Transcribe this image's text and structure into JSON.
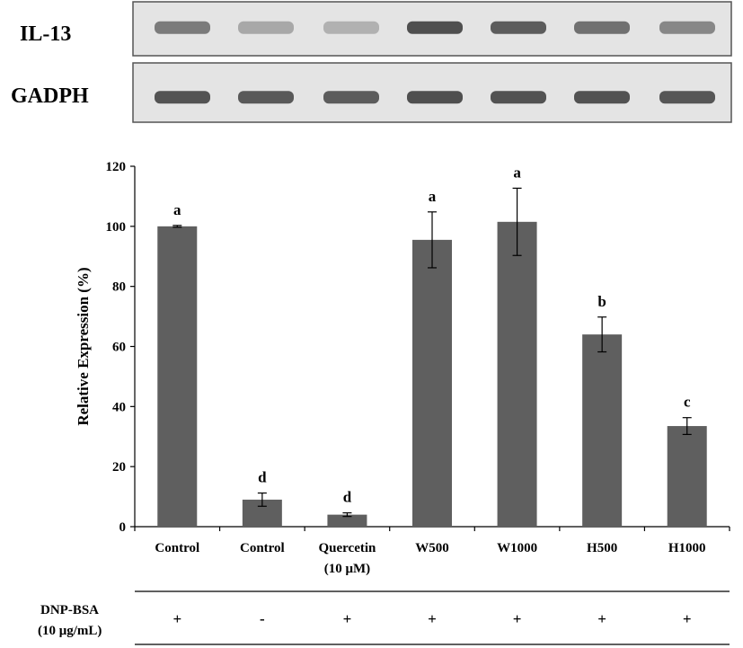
{
  "blot": {
    "rows": [
      {
        "label": "IL-13",
        "band_intensity": [
          0.62,
          0.35,
          0.3,
          0.88,
          0.8,
          0.68,
          0.55
        ]
      },
      {
        "label": "GADPH",
        "band_intensity": [
          0.85,
          0.82,
          0.8,
          0.88,
          0.86,
          0.86,
          0.84
        ]
      }
    ],
    "colors": {
      "membrane": "#e4e4e4",
      "band": "#3a3a3a",
      "border": "#555555"
    }
  },
  "chart_data": {
    "type": "bar",
    "ylabel": "Relative Expression (%)",
    "ylim": [
      0,
      120
    ],
    "yticks": [
      0,
      20,
      40,
      60,
      80,
      100,
      120
    ],
    "categories": [
      {
        "line1": "Control",
        "line2": ""
      },
      {
        "line1": "Control",
        "line2": ""
      },
      {
        "line1": "Quercetin",
        "line2": "(10 μM)"
      },
      {
        "line1": "W500",
        "line2": ""
      },
      {
        "line1": "W1000",
        "line2": ""
      },
      {
        "line1": "H500",
        "line2": ""
      },
      {
        "line1": "H1000",
        "line2": ""
      }
    ],
    "values": [
      100,
      9,
      4,
      95.5,
      101.5,
      64,
      33.5
    ],
    "errors": [
      0.3,
      2.2,
      0.6,
      9.3,
      11.2,
      5.8,
      2.8
    ],
    "significance": [
      "a",
      "d",
      "d",
      "a",
      "a",
      "b",
      "c"
    ],
    "bar_color": "#5f5f5f",
    "treatment": {
      "label_line1": "DNP-BSA",
      "label_line2": "(10 μg/mL)",
      "signs": [
        "+",
        "-",
        "+",
        "+",
        "+",
        "+",
        "+"
      ]
    }
  }
}
